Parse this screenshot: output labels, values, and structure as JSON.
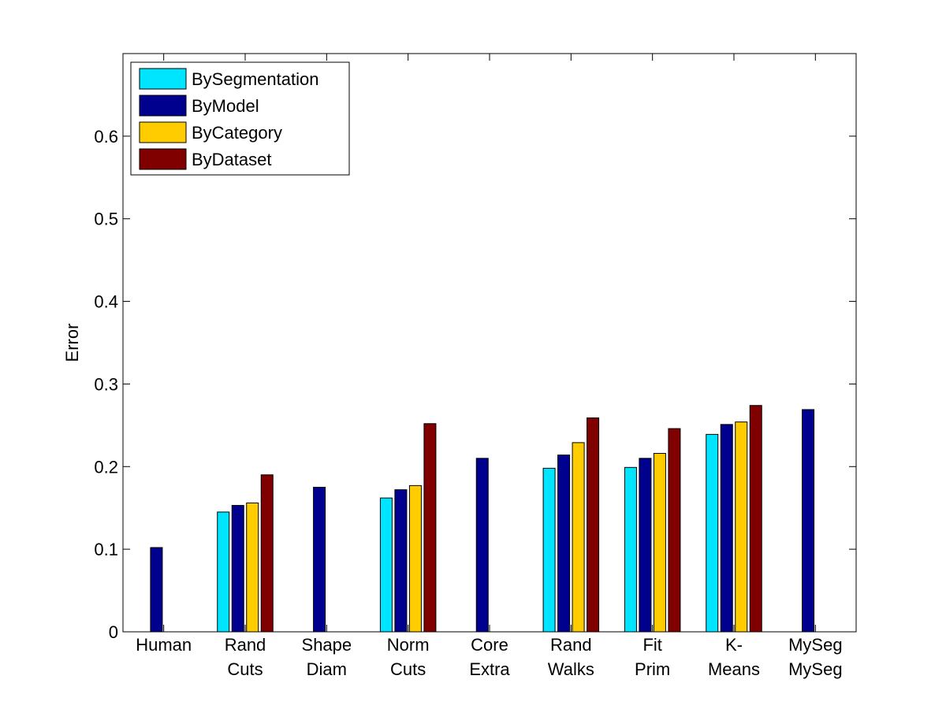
{
  "chart_data": {
    "type": "bar",
    "ylabel": "Error",
    "xlabel": "",
    "ylim": [
      0,
      0.7
    ],
    "yticks": [
      "0",
      "0.1",
      "0.2",
      "0.3",
      "0.4",
      "0.5",
      "0.6"
    ],
    "yticks_values": [
      0,
      0.1,
      0.2,
      0.3,
      0.4,
      0.5,
      0.6
    ],
    "grid": false,
    "legend_position": "top-left",
    "categories": [
      [
        "Human"
      ],
      [
        "Rand",
        "Cuts"
      ],
      [
        "Shape",
        "Diam"
      ],
      [
        "Norm",
        "Cuts"
      ],
      [
        "Core",
        "Extra"
      ],
      [
        "Rand",
        "Walks"
      ],
      [
        "Fit",
        "Prim"
      ],
      [
        "K-",
        "Means"
      ],
      [
        "MySeg",
        "MySeg"
      ]
    ],
    "series": [
      {
        "name": "BySegmentation",
        "color": "#00e5ff",
        "values": [
          null,
          0.145,
          null,
          0.162,
          null,
          0.198,
          0.199,
          0.239,
          null
        ]
      },
      {
        "name": "ByModel",
        "color": "#00008f",
        "values": [
          0.102,
          0.153,
          0.175,
          0.172,
          0.21,
          0.214,
          0.21,
          0.251,
          0.269
        ]
      },
      {
        "name": "ByCategory",
        "color": "#ffcc00",
        "values": [
          null,
          0.156,
          null,
          0.177,
          null,
          0.229,
          0.216,
          0.254,
          null
        ]
      },
      {
        "name": "ByDataset",
        "color": "#800000",
        "values": [
          null,
          0.19,
          null,
          0.252,
          null,
          0.259,
          0.246,
          0.274,
          null
        ]
      }
    ]
  }
}
